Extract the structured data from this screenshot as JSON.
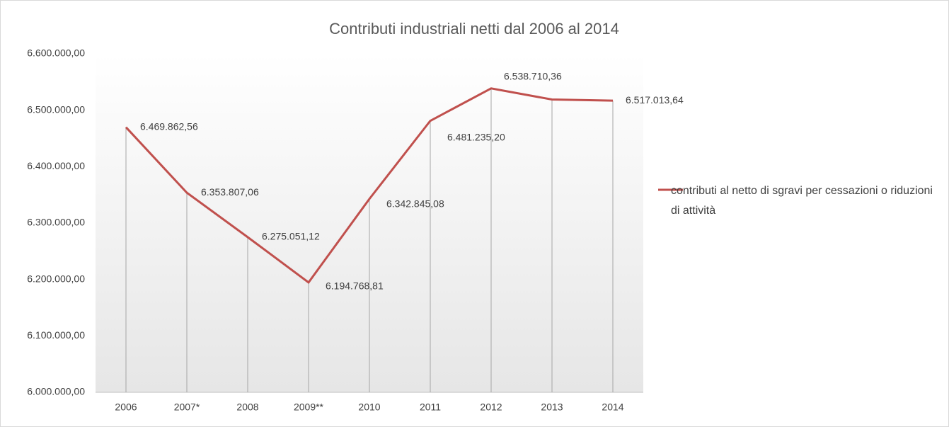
{
  "chart_data": {
    "type": "line",
    "title": "Contributi industriali netti dal 2006 al 2014",
    "categories": [
      "2006",
      "2007*",
      "2008",
      "2009**",
      "2010",
      "2011",
      "2012",
      "2013",
      "2014"
    ],
    "series": [
      {
        "name": "contributi al netto  di sgravi per cessazioni o riduzioni di attività",
        "color": "#c0504d",
        "values": [
          6469862.56,
          6353807.06,
          6275051.12,
          6194768.81,
          6342845.08,
          6481235.2,
          6538710.36,
          6519000,
          6517013.64
        ],
        "value_labels": [
          "6.469.862,56",
          "6.353.807,06",
          "6.275.051,12",
          "6.194.768,81",
          "6.342.845,08",
          "6.481.235,20",
          "6.538.710,36",
          null,
          "6.517.013,64"
        ]
      }
    ],
    "ylim": [
      6000000,
      6600000
    ],
    "yticks": [
      {
        "value": 6000000,
        "label": "6.000.000,00"
      },
      {
        "value": 6100000,
        "label": "6.100.000,00"
      },
      {
        "value": 6200000,
        "label": "6.200.000,00"
      },
      {
        "value": 6300000,
        "label": "6.300.000,00"
      },
      {
        "value": 6400000,
        "label": "6.400.000,00"
      },
      {
        "value": 6500000,
        "label": "6.500.000,00"
      },
      {
        "value": 6600000,
        "label": "6.600.000,00"
      }
    ],
    "legend": "right"
  }
}
